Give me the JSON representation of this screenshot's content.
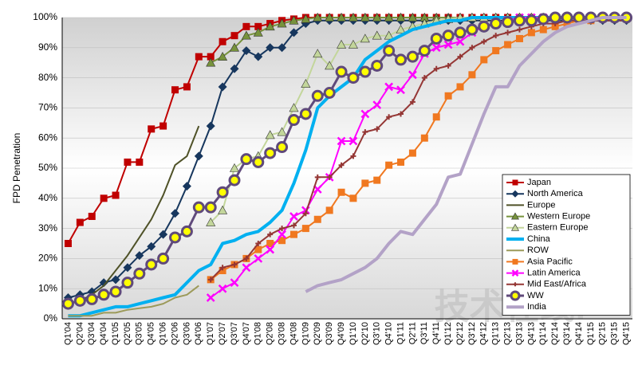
{
  "chart_data": {
    "type": "line",
    "y_label": "FPD Penetration",
    "watermark": "技术在线!",
    "categories": [
      "Q1'04",
      "Q2'04",
      "Q3'04",
      "Q4'04",
      "Q1'05",
      "Q2'05",
      "Q3'05",
      "Q4'05",
      "Q1'06",
      "Q2'06",
      "Q3'06",
      "Q4'06",
      "Q1'07",
      "Q2'07",
      "Q3'07",
      "Q4'07",
      "Q1'08",
      "Q2'08",
      "Q3'08",
      "Q4'08",
      "Q1'09",
      "Q2'09",
      "Q3'09",
      "Q4'09",
      "Q1'10",
      "Q2'10",
      "Q3'10",
      "Q4'10",
      "Q1'11",
      "Q2'11",
      "Q3'11",
      "Q4'11",
      "Q1'12",
      "Q2'12",
      "Q3'12",
      "Q4'12",
      "Q1'13",
      "Q2'13",
      "Q3'13",
      "Q4'13",
      "Q1'14",
      "Q2'14",
      "Q3'14",
      "Q4'14",
      "Q1'15",
      "Q2'15",
      "Q3'15",
      "Q4'15"
    ],
    "ylim": [
      0,
      100
    ],
    "yticks": [
      {
        "value": 0,
        "label": "0%"
      },
      {
        "value": 10,
        "label": "10%"
      },
      {
        "value": 20,
        "label": "20%"
      },
      {
        "value": 30,
        "label": "30%"
      },
      {
        "value": 40,
        "label": "40%"
      },
      {
        "value": 50,
        "label": "50%"
      },
      {
        "value": 60,
        "label": "60%"
      },
      {
        "value": 70,
        "label": "70%"
      },
      {
        "value": 80,
        "label": "80%"
      },
      {
        "value": 90,
        "label": "90%"
      },
      {
        "value": 100,
        "label": "100%"
      }
    ],
    "grid": true,
    "legend": "lower right",
    "series": [
      {
        "name": "Japan",
        "color": "#c00000",
        "marker": "square",
        "width": 2,
        "values": [
          25,
          32,
          34,
          40,
          41,
          52,
          52,
          63,
          64,
          76,
          77,
          87,
          87,
          92,
          94,
          97,
          97,
          98,
          99,
          99.5,
          100,
          100,
          100,
          100,
          100,
          100,
          100,
          100,
          100,
          100,
          100,
          100,
          100,
          100,
          100,
          100,
          100,
          100,
          100,
          100,
          100,
          100,
          100,
          100,
          100,
          100,
          100,
          100
        ]
      },
      {
        "name": "North America",
        "color": "#17375e",
        "marker": "diamond",
        "width": 2,
        "values": [
          7,
          8,
          9,
          12,
          13,
          17,
          21,
          24,
          28,
          35,
          44,
          54,
          64,
          77,
          83,
          89,
          87,
          90,
          90,
          95,
          98,
          99,
          99,
          99,
          99,
          99,
          99,
          99,
          99,
          99,
          99,
          99,
          99,
          99,
          99,
          99,
          99,
          99,
          99,
          99,
          99,
          99,
          99,
          99,
          99,
          99,
          99,
          99
        ]
      },
      {
        "name": "Europe",
        "color": "#4f5228",
        "marker": "none",
        "width": 2,
        "values": [
          5,
          6,
          8,
          11,
          16,
          21,
          27,
          33,
          41,
          51,
          54,
          64,
          null,
          null,
          null,
          null,
          null,
          null,
          null,
          null,
          null,
          null,
          null,
          null,
          null,
          null,
          null,
          null,
          null,
          null,
          null,
          null,
          null,
          null,
          null,
          null,
          null,
          null,
          null,
          null,
          null,
          null,
          null,
          null,
          null,
          null,
          null,
          null
        ]
      },
      {
        "name": "Western Europe",
        "color": "#77933c",
        "marker": "triangle",
        "width": 2,
        "values": [
          null,
          null,
          null,
          null,
          null,
          null,
          null,
          null,
          null,
          null,
          null,
          null,
          85,
          87,
          90,
          94,
          95,
          97,
          98,
          99,
          99.5,
          100,
          100,
          100,
          100,
          100,
          100,
          100,
          100,
          100,
          100,
          100,
          100,
          100,
          100,
          100,
          100,
          100,
          100,
          100,
          100,
          100,
          100,
          100,
          100,
          100,
          100,
          100
        ]
      },
      {
        "name": "Eastern Europe",
        "color": "#c3d69b",
        "marker": "triangle",
        "width": 2,
        "values": [
          null,
          null,
          null,
          null,
          null,
          null,
          null,
          null,
          null,
          null,
          null,
          null,
          32,
          36,
          50,
          53,
          54,
          61,
          62,
          70,
          78,
          88,
          84,
          91,
          91,
          93,
          94,
          94,
          96,
          97,
          98,
          99,
          99.5,
          100,
          100,
          100,
          100,
          100,
          100,
          100,
          100,
          100,
          100,
          100,
          100,
          100,
          100,
          100
        ]
      },
      {
        "name": "China",
        "color": "#00b0f0",
        "marker": "none",
        "width": 4,
        "values": [
          1,
          1,
          2,
          3,
          4,
          4,
          5,
          6,
          7,
          8,
          12,
          16,
          18,
          25,
          26,
          28,
          29,
          32,
          36,
          45,
          56,
          70,
          74,
          77,
          80,
          86,
          89,
          92,
          94,
          96,
          97,
          98,
          99,
          99,
          100,
          100,
          100,
          100,
          100,
          100,
          100,
          100,
          100,
          100,
          100,
          100,
          100,
          100
        ]
      },
      {
        "name": "ROW",
        "color": "#9c9a5a",
        "marker": "none",
        "width": 2,
        "values": [
          1,
          1,
          1,
          2,
          2,
          3,
          3.5,
          4,
          5,
          7,
          8,
          11,
          null,
          null,
          null,
          null,
          null,
          null,
          null,
          null,
          null,
          null,
          null,
          null,
          null,
          null,
          null,
          null,
          null,
          null,
          null,
          null,
          null,
          null,
          null,
          null,
          null,
          null,
          null,
          null,
          null,
          null,
          null,
          null,
          null,
          null,
          null,
          null
        ]
      },
      {
        "name": "Asia Pacific",
        "color": "#f07820",
        "marker": "square",
        "width": 2,
        "values": [
          null,
          null,
          null,
          null,
          null,
          null,
          null,
          null,
          null,
          null,
          null,
          null,
          13,
          16,
          18,
          20,
          23,
          25,
          26,
          28,
          30,
          33,
          36,
          42,
          40,
          45,
          46,
          51,
          52,
          55,
          60,
          67,
          74,
          77,
          81,
          86,
          89,
          91,
          93,
          95,
          96,
          97,
          98,
          99,
          99,
          100,
          100,
          100
        ]
      },
      {
        "name": "Latin America",
        "color": "#ff00ff",
        "marker": "x",
        "width": 2,
        "values": [
          null,
          null,
          null,
          null,
          null,
          null,
          null,
          null,
          null,
          null,
          null,
          null,
          7,
          10,
          12,
          17,
          20,
          23,
          28,
          34,
          36,
          43,
          47,
          59,
          59,
          68,
          71,
          77,
          76,
          81,
          88,
          90,
          91,
          92,
          95,
          97,
          98,
          99,
          100,
          100,
          100,
          100,
          100,
          100,
          100,
          100,
          100,
          100
        ]
      },
      {
        "name": "Mid East/Africa",
        "color": "#953735",
        "marker": "plus",
        "width": 2,
        "values": [
          null,
          null,
          null,
          null,
          null,
          null,
          null,
          null,
          null,
          null,
          null,
          null,
          13,
          17,
          18,
          20,
          25,
          28,
          30,
          31,
          35,
          47,
          47,
          51,
          54,
          62,
          63,
          67,
          68,
          72,
          80,
          83,
          84,
          87,
          90,
          92,
          94,
          95,
          96,
          97,
          98,
          98,
          99,
          99,
          99,
          99,
          99,
          99
        ]
      },
      {
        "name": "WW",
        "color": "#604a7b",
        "marker": "circle",
        "width": 3,
        "values": [
          5,
          6,
          6.5,
          8,
          9,
          12,
          15,
          18,
          20,
          27,
          29,
          37,
          37,
          42,
          46,
          53,
          52,
          55,
          57,
          66,
          68,
          74,
          75,
          82,
          80,
          82,
          84,
          89,
          86,
          87,
          89,
          93,
          94,
          95,
          96,
          97,
          98,
          98.5,
          99,
          99,
          99.5,
          100,
          100,
          100,
          100,
          100,
          100,
          100
        ]
      },
      {
        "name": "India",
        "color": "#b3a2c7",
        "marker": "none",
        "width": 4,
        "values": [
          null,
          null,
          null,
          null,
          null,
          null,
          null,
          null,
          null,
          null,
          null,
          null,
          null,
          null,
          null,
          null,
          null,
          null,
          null,
          null,
          9,
          11,
          12,
          13,
          15,
          17,
          20,
          25,
          29,
          28,
          33,
          38,
          47,
          48,
          58,
          68,
          77,
          77,
          84,
          88,
          92,
          95,
          97,
          98,
          99,
          100,
          100,
          100
        ]
      }
    ]
  }
}
